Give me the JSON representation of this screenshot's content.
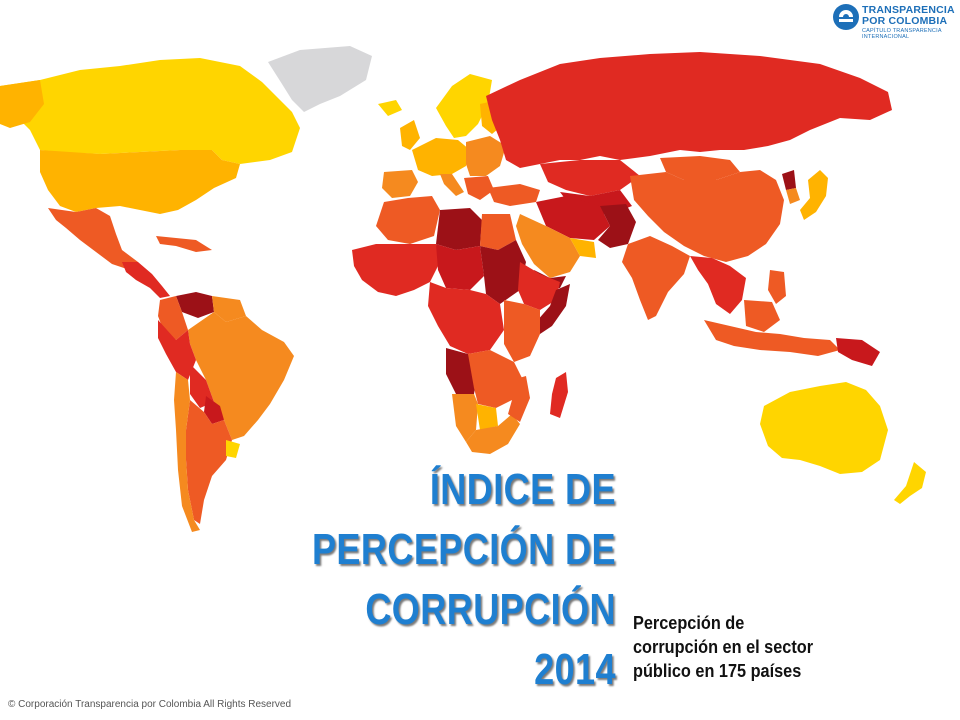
{
  "logo": {
    "line1": "TRANSPARENCIA",
    "line2": "POR COLOMBIA",
    "line3": "CAPÍTULO TRANSPARENCIA INTERNACIONAL"
  },
  "title": {
    "line1": "ÍNDICE DE",
    "line2": "PERCEPCIÓN DE",
    "line3": "CORRUPCIÓN",
    "line4": "2014"
  },
  "subtitle": {
    "line1": "Percepción de",
    "line2": "corrupción en el sector",
    "line3": "público en 175 países"
  },
  "footer": {
    "copyright": "© Corporación Transparencia por Colombia All Rights Reserved"
  },
  "colors": {
    "very_clean": "#ffd500",
    "clean": "#ffb300",
    "moderate": "#f58a1f",
    "corrupt": "#ee5a24",
    "very_corrupt": "#e02a22",
    "highly_corrupt": "#c8181c",
    "extremely_corrupt": "#9c1117",
    "no_data": "#d7d7d9",
    "title_blue": "#1f7fd0",
    "logo_blue": "#1d6fb8"
  }
}
